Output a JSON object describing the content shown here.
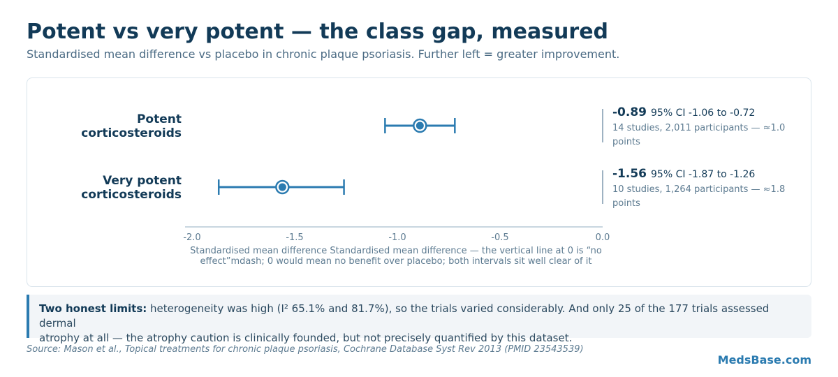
{
  "header": {
    "title": "Potent vs very potent — the class gap, measured",
    "subtitle": "Standardised mean difference vs placebo in chronic plaque psoriasis. Further left = greater improvement."
  },
  "chart_data": {
    "type": "forest",
    "xlabel": "Standardised mean difference Standardised mean difference — the vertical line at 0 is “no effect”mdash; 0 would mean no benefit over placebo; both intervals sit well clear of it",
    "xlim": [
      -2.0,
      0.0
    ],
    "xticks": [
      "-2.0",
      "-1.5",
      "-1.0",
      "-0.5",
      "0.0"
    ],
    "reference_line": 0.0,
    "rows": [
      {
        "label_line1": "Potent",
        "label_line2": "corticosteroids",
        "estimate": -0.89,
        "ci_low": -1.06,
        "ci_high": -0.72,
        "estimate_text": "-0.89",
        "ci_text": "95% CI -1.06 to -0.72",
        "studies_line1": "14 studies, 2,011 participants — ≈1.0",
        "studies_line2": "points"
      },
      {
        "label_line1": "Very potent",
        "label_line2": "corticosteroids",
        "estimate": -1.56,
        "ci_low": -1.87,
        "ci_high": -1.26,
        "estimate_text": "-1.56",
        "ci_text": "95% CI -1.87 to -1.26",
        "studies_line1": "10 studies, 1,264 participants — ≈1.8",
        "studies_line2": "points"
      }
    ]
  },
  "note": {
    "lead": "Two honest limits:",
    "line1": " heterogeneity was high (I² 65.1% and 81.7%), so the trials varied considerably. And only 25 of the 177 trials assessed dermal",
    "line2": "atrophy at all — the atrophy caution is clinically founded, but not precisely quantified by this dataset."
  },
  "footer": {
    "source": "Source: Mason et al., Topical treatments for chronic plaque psoriasis, Cochrane Database Syst Rev 2013 (PMID 23543539)",
    "brand": "MedsBase.com"
  },
  "colors": {
    "accent": "#2b7bb0",
    "title": "#123a57",
    "muted": "#5d7b91",
    "axis": "#c8d6e0"
  }
}
